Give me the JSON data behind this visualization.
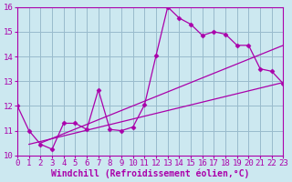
{
  "xlabel": "Windchill (Refroidissement éolien,°C)",
  "ylabel": "",
  "bg_color": "#cce8f0",
  "line_color": "#aa00aa",
  "grid_color": "#99bbcc",
  "xmin": 0,
  "xmax": 23,
  "ymin": 10,
  "ymax": 16,
  "series1_x": [
    0,
    1,
    2,
    3,
    4,
    5,
    6,
    7,
    8,
    9,
    10,
    11,
    12,
    13,
    14,
    15,
    16,
    17,
    18,
    19,
    20,
    21,
    22,
    23
  ],
  "series1_y": [
    12.0,
    11.0,
    10.45,
    10.25,
    11.3,
    11.3,
    11.05,
    12.65,
    11.05,
    11.0,
    11.15,
    12.05,
    14.05,
    16.0,
    15.55,
    15.3,
    14.85,
    15.0,
    14.9,
    14.45,
    14.45,
    13.5,
    13.4,
    12.9
  ],
  "series2_x": [
    1,
    23
  ],
  "series2_y": [
    10.45,
    12.95
  ],
  "series3_x": [
    2,
    23
  ],
  "series3_y": [
    10.5,
    14.45
  ],
  "tick_fontsize": 6.5,
  "label_fontsize": 7.0
}
